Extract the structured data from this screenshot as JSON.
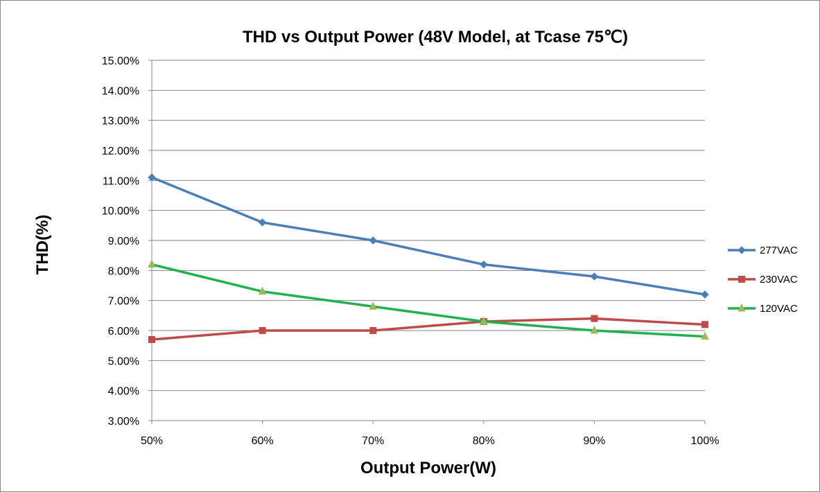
{
  "chart_data": {
    "type": "line",
    "title": "THD vs Output Power (48V Model, at Tcase 75℃)",
    "xlabel": "Output Power(W)",
    "ylabel": "THD(%)",
    "categories": [
      "50%",
      "60%",
      "70%",
      "80%",
      "90%",
      "100%"
    ],
    "ylim": [
      3,
      15
    ],
    "ytick_step": 1,
    "ytick_labels": [
      "3.00%",
      "4.00%",
      "5.00%",
      "6.00%",
      "7.00%",
      "8.00%",
      "9.00%",
      "10.00%",
      "11.00%",
      "12.00%",
      "13.00%",
      "14.00%",
      "15.00%"
    ],
    "grid": true,
    "legend_position": "right",
    "series": [
      {
        "name": "277VAC",
        "color": "#4A7EBB",
        "marker": "diamond",
        "values": [
          11.1,
          9.6,
          9.0,
          8.2,
          7.8,
          7.2
        ]
      },
      {
        "name": "230VAC",
        "color": "#BE4B48",
        "marker": "square",
        "values": [
          5.7,
          6.0,
          6.0,
          6.3,
          6.4,
          6.2
        ]
      },
      {
        "name": "120VAC",
        "color": "#1EB14C",
        "marker": "triangle",
        "values": [
          8.2,
          7.3,
          6.8,
          6.3,
          6.0,
          5.8
        ]
      }
    ]
  }
}
